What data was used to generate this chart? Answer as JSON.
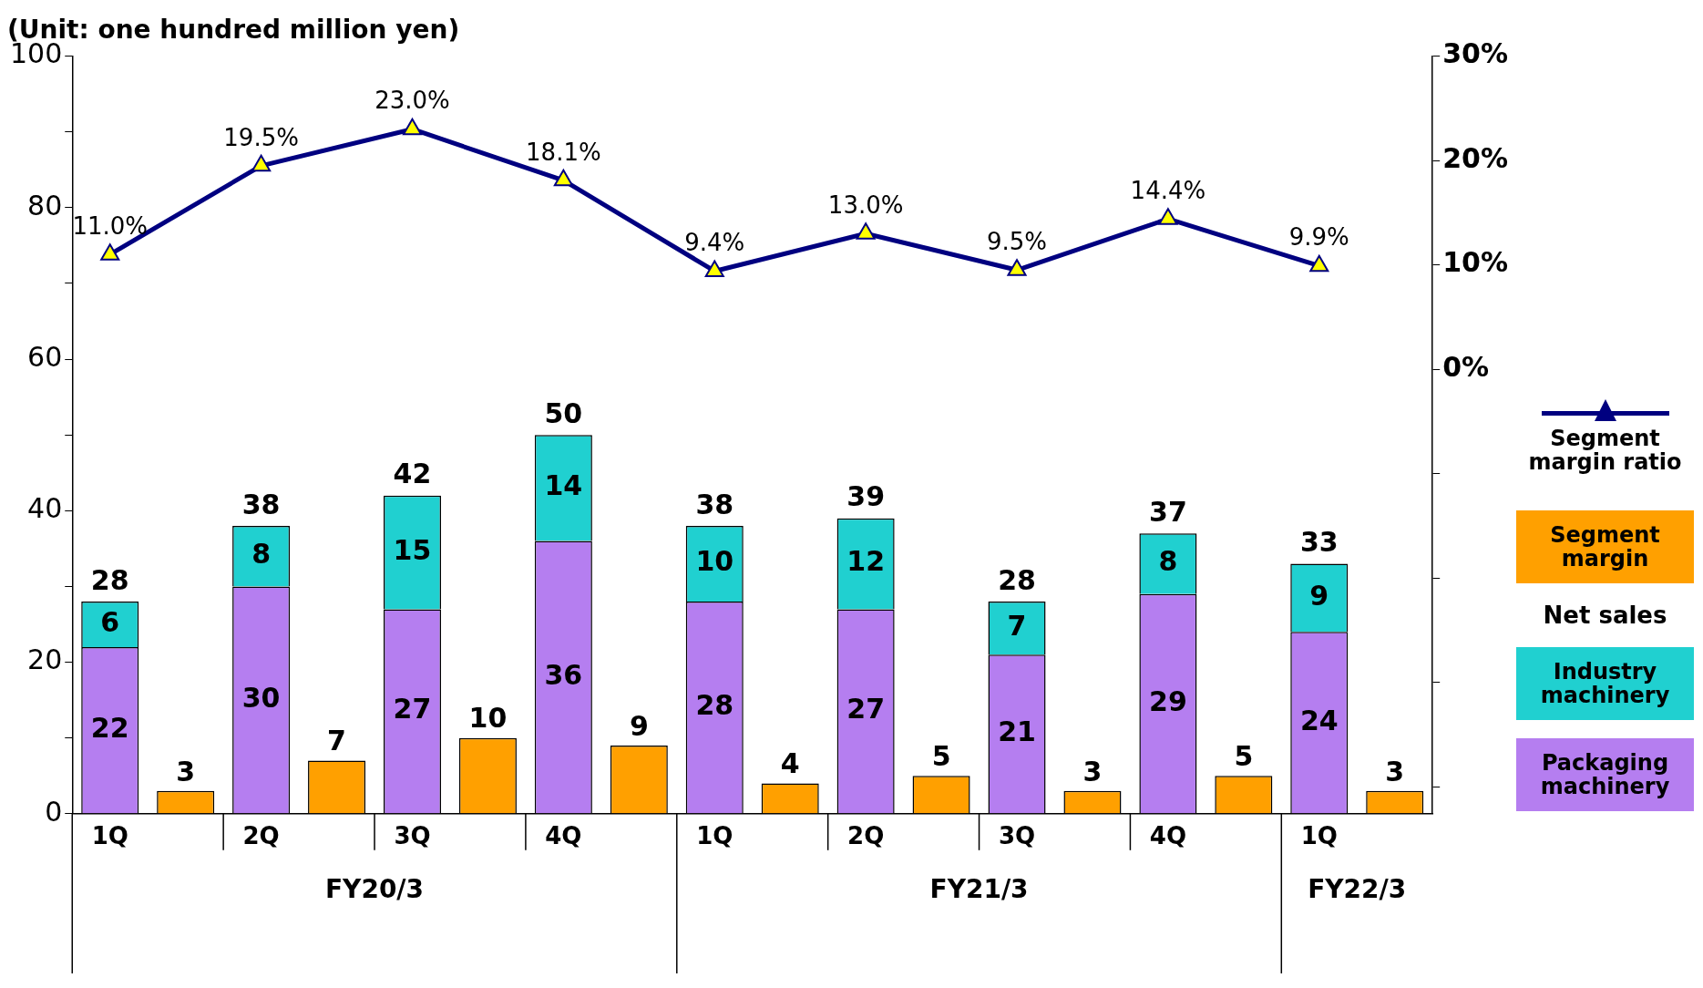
{
  "chart_data": {
    "type": "bar",
    "title": "(Unit: one hundred million yen)",
    "categories": [
      "1Q",
      null,
      "2Q",
      null,
      "3Q",
      null,
      "4Q",
      null,
      "1Q",
      null,
      "2Q",
      null,
      "3Q",
      null,
      "4Q",
      null,
      "1Q",
      null
    ],
    "annotations": [
      "FY20/3",
      "FY21/3",
      "FY22/3"
    ],
    "legend_title": "Net sales",
    "series": [
      {
        "name": "Packaging machinery",
        "color": "#b57ef0",
        "values": [
          22,
          null,
          30,
          null,
          27,
          null,
          36,
          null,
          28,
          null,
          27,
          null,
          21,
          null,
          29,
          null,
          24,
          null
        ]
      },
      {
        "name": "Industry machinery",
        "color": "#20d0d0",
        "values": [
          6,
          null,
          8,
          null,
          15,
          null,
          14,
          null,
          10,
          null,
          12,
          null,
          7,
          null,
          8,
          null,
          9,
          null
        ]
      },
      {
        "name": "Segment margin",
        "color": "#ffa000",
        "values": [
          null,
          3,
          null,
          7,
          null,
          10,
          null,
          9,
          null,
          4,
          null,
          5,
          null,
          3,
          null,
          5,
          null,
          3
        ]
      },
      {
        "name": "Segment margin ratio",
        "type": "line",
        "axis": "y2",
        "color": "#000080",
        "marker": "triangle",
        "values": [
          11.0,
          null,
          19.5,
          null,
          23.0,
          null,
          18.1,
          null,
          9.4,
          null,
          13.0,
          null,
          9.5,
          null,
          14.4,
          null,
          9.9,
          null
        ],
        "value_labels": [
          "11.0%",
          null,
          "19.5%",
          null,
          "23.0%",
          null,
          "18.1%",
          null,
          "9.4%",
          null,
          "13.0%",
          null,
          "9.5%",
          null,
          "14.4%",
          null,
          "9.9%",
          null
        ]
      }
    ],
    "stacked": true,
    "totals": [
      "28",
      null,
      "38",
      null,
      "42",
      null,
      "50",
      null,
      "38",
      null,
      "39",
      null,
      "28",
      null,
      "37",
      null,
      "33",
      null
    ],
    "data_labels": true,
    "ylim": [
      0,
      100
    ],
    "yticks": [
      0,
      {
        "value": 10,
        "label": null
      },
      20,
      {
        "value": 30,
        "label": null
      },
      40,
      {
        "value": 50,
        "label": null
      },
      60,
      {
        "value": 70,
        "label": null
      },
      80,
      {
        "value": 90,
        "label": null
      },
      100
    ],
    "y2lim": [
      -42.6,
      30
    ],
    "y2ticks": [
      {
        "value": -40,
        "label": null
      },
      {
        "value": -30,
        "label": null
      },
      {
        "value": -20,
        "label": null
      },
      {
        "value": -10,
        "label": null
      },
      {
        "value": 0,
        "label": "0%"
      },
      {
        "value": 10,
        "label": "10%"
      },
      {
        "value": 20,
        "label": "20%"
      },
      {
        "value": 30,
        "label": "30%"
      }
    ],
    "grid": false,
    "legend": "right"
  }
}
